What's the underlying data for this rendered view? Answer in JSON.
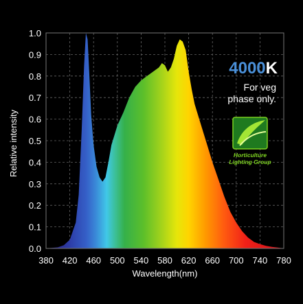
{
  "chart_data": {
    "type": "area",
    "title": "",
    "xlabel": "Wavelength(nm)",
    "ylabel": "Relative intensity",
    "xlim": [
      380,
      780
    ],
    "ylim": [
      0.0,
      1.0
    ],
    "xticks": [
      "380",
      "420",
      "460",
      "500",
      "540",
      "580",
      "620",
      "660",
      "700",
      "740",
      "780"
    ],
    "yticks": [
      "0.0",
      "0.1",
      "0.2",
      "0.3",
      "0.4",
      "0.5",
      "0.6",
      "0.7",
      "0.8",
      "0.9",
      "1.0"
    ],
    "grid": true,
    "x": [
      380,
      400,
      410,
      420,
      430,
      435,
      440,
      444,
      447,
      450,
      453,
      456,
      460,
      465,
      470,
      475,
      480,
      485,
      490,
      500,
      510,
      520,
      530,
      540,
      550,
      560,
      570,
      575,
      580,
      585,
      590,
      595,
      600,
      605,
      610,
      615,
      620,
      625,
      630,
      640,
      650,
      660,
      670,
      680,
      690,
      700,
      710,
      720,
      730,
      740,
      750,
      760,
      770,
      780
    ],
    "y": [
      0.0,
      0.005,
      0.015,
      0.04,
      0.12,
      0.25,
      0.55,
      0.85,
      1.0,
      0.97,
      0.8,
      0.62,
      0.48,
      0.38,
      0.33,
      0.31,
      0.33,
      0.4,
      0.48,
      0.57,
      0.63,
      0.7,
      0.75,
      0.78,
      0.8,
      0.82,
      0.84,
      0.86,
      0.85,
      0.82,
      0.84,
      0.88,
      0.94,
      0.97,
      0.96,
      0.92,
      0.82,
      0.74,
      0.67,
      0.58,
      0.49,
      0.4,
      0.32,
      0.24,
      0.17,
      0.12,
      0.08,
      0.05,
      0.03,
      0.02,
      0.012,
      0.007,
      0.004,
      0.0
    ]
  },
  "annotation": {
    "cct_number": "4000",
    "cct_unit": "K",
    "note_line1": "For veg",
    "note_line2": "phase only."
  },
  "logo": {
    "line1": "Horticulture",
    "line2": "Lighting Group",
    "color": "#7ed321"
  }
}
